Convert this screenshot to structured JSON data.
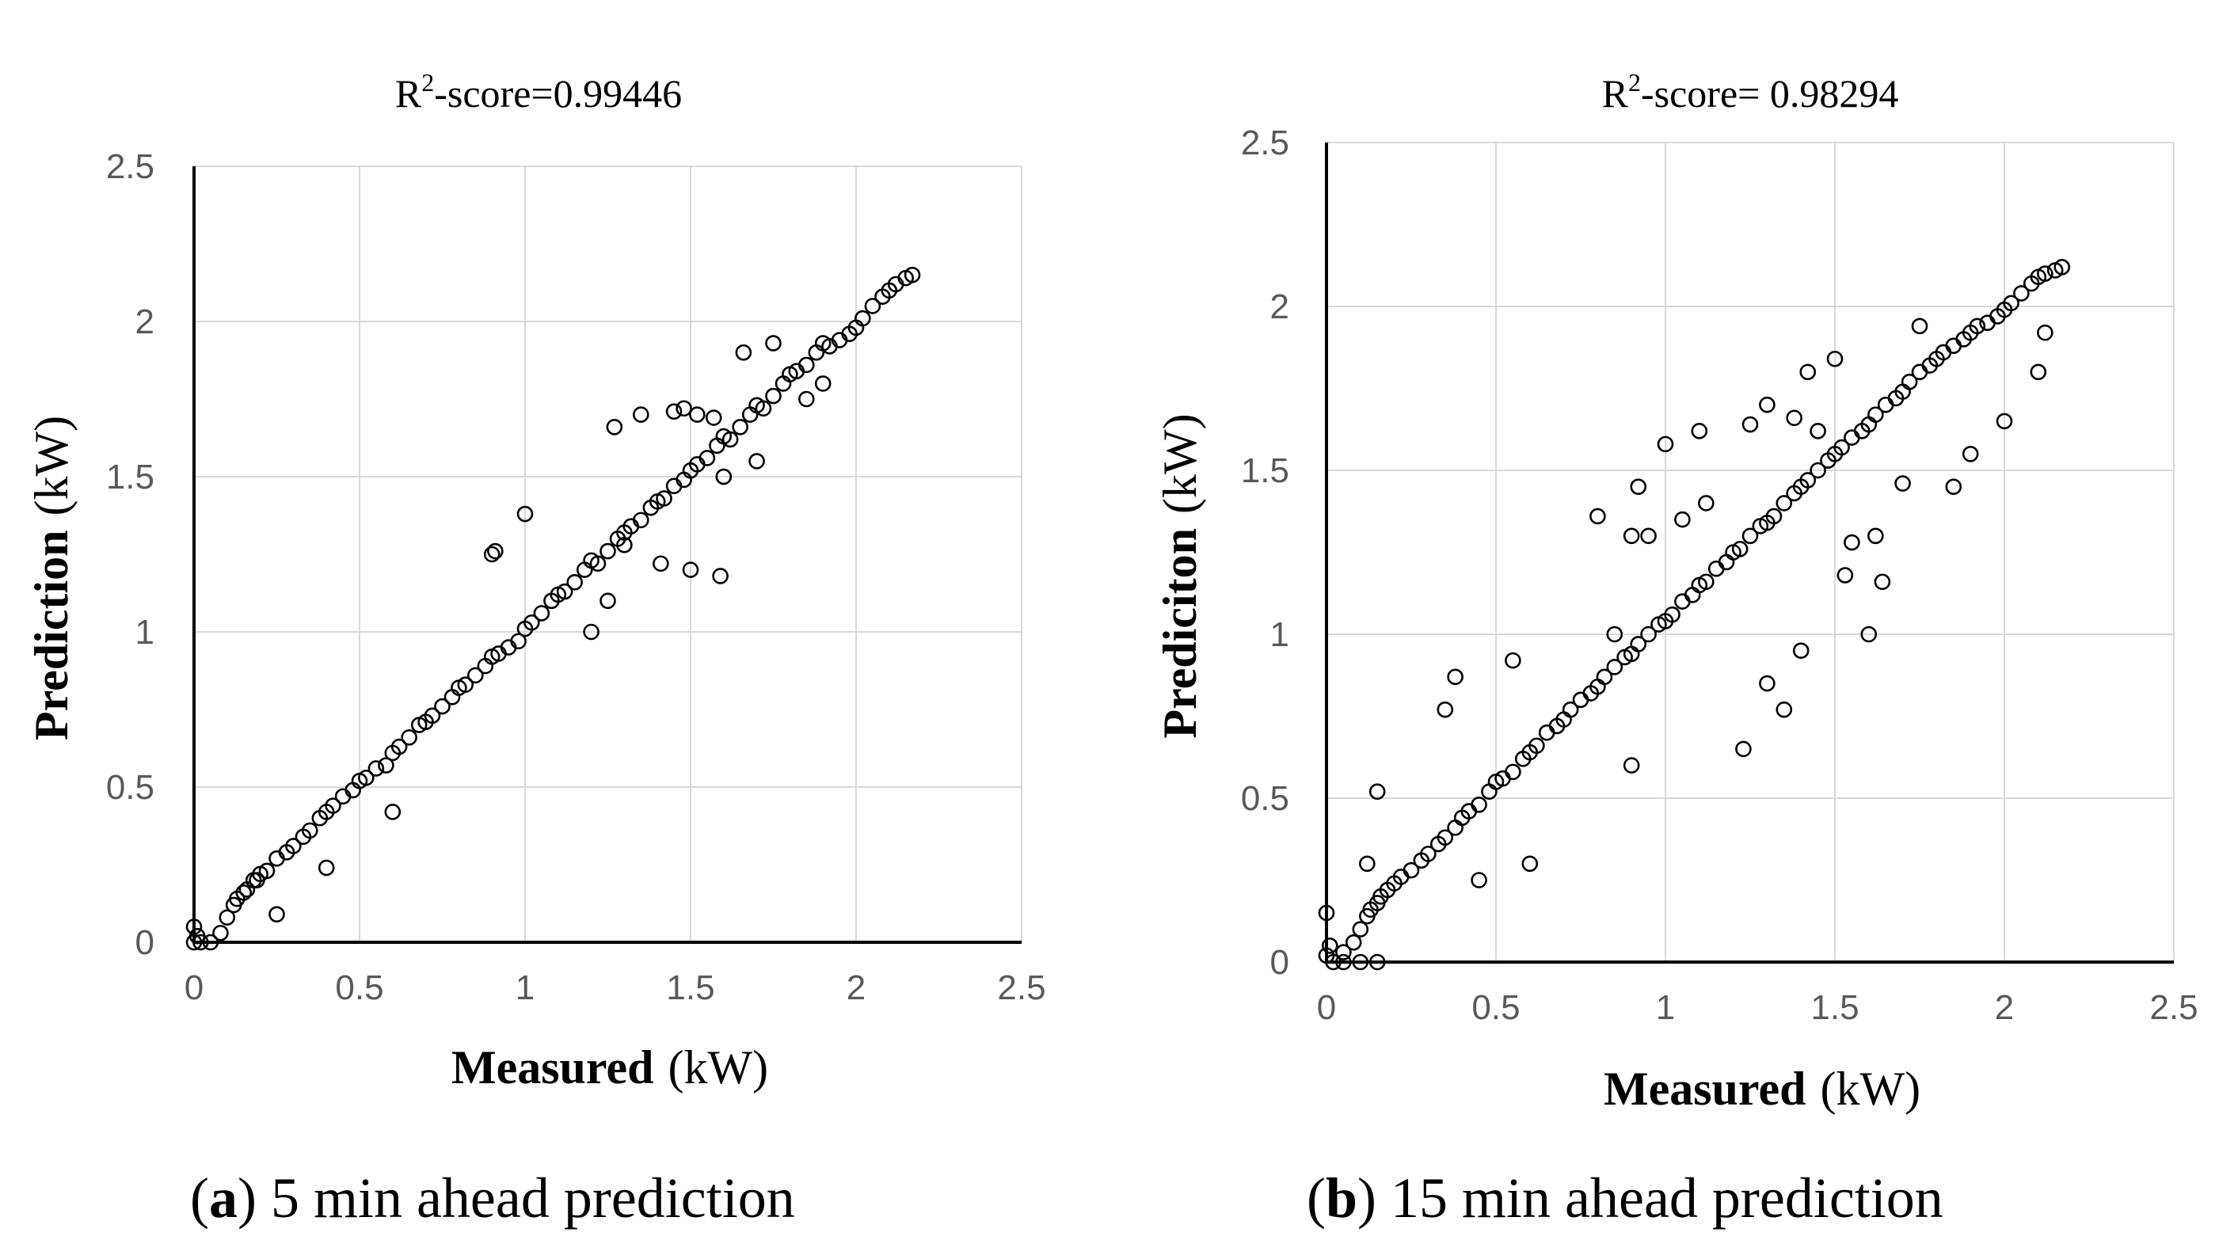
{
  "figure": {
    "captions": [
      {
        "label": "a",
        "open": "(",
        "close": ")",
        "text": " 5 min ahead prediction"
      },
      {
        "label": "b",
        "open": "(",
        "close": ")",
        "text": " 15 min ahead prediction"
      }
    ]
  },
  "chart_data": [
    {
      "type": "scatter",
      "panel": "a",
      "title_prefix": "R",
      "title_sup": "2",
      "title_suffix": "-score=0.99446",
      "xlabel_bold": "Measured",
      "xlabel_unit": "(kW)",
      "ylabel_bold": "Prediction",
      "ylabel_unit": "(kW)",
      "xlim": [
        0,
        2.5
      ],
      "ylim": [
        0,
        2.5
      ],
      "xticks": [
        "0",
        "0.5",
        "1",
        "1.5",
        "2",
        "2.5"
      ],
      "yticks": [
        "0",
        "0.5",
        "1",
        "1.5",
        "2",
        "2.5"
      ],
      "grid": true,
      "marker": "open-circle",
      "color": "#000000",
      "series": [
        {
          "name": "predictions",
          "x": [
            0.0,
            0.0,
            0.01,
            0.02,
            0.05,
            0.08,
            0.1,
            0.12,
            0.13,
            0.15,
            0.16,
            0.18,
            0.19,
            0.2,
            0.22,
            0.25,
            0.28,
            0.3,
            0.33,
            0.35,
            0.38,
            0.4,
            0.42,
            0.45,
            0.48,
            0.5,
            0.52,
            0.55,
            0.58,
            0.6,
            0.62,
            0.65,
            0.68,
            0.7,
            0.72,
            0.75,
            0.78,
            0.8,
            0.82,
            0.85,
            0.88,
            0.9,
            0.92,
            0.95,
            0.98,
            1.0,
            1.02,
            1.05,
            1.08,
            1.1,
            1.12,
            1.15,
            1.18,
            1.2,
            1.22,
            1.25,
            1.28,
            1.3,
            1.32,
            1.35,
            1.38,
            1.4,
            1.42,
            1.45,
            1.48,
            1.5,
            1.52,
            1.55,
            1.58,
            1.6,
            1.62,
            1.65,
            1.68,
            1.7,
            1.72,
            1.75,
            1.78,
            1.8,
            1.82,
            1.85,
            1.88,
            1.9,
            1.92,
            1.95,
            1.98,
            2.0,
            2.02,
            2.05,
            2.08,
            2.1,
            2.12,
            2.15,
            2.17,
            0.9,
            0.91,
            1.0,
            1.27,
            1.35,
            1.45,
            1.48,
            1.52,
            1.57,
            1.59,
            1.66,
            1.75,
            1.5,
            1.6,
            1.41,
            1.2,
            1.25,
            0.6,
            0.4,
            0.25,
            1.3,
            1.6,
            1.7,
            1.85,
            1.9
          ],
          "y": [
            0.05,
            0.0,
            0.02,
            0.0,
            0.0,
            0.03,
            0.08,
            0.12,
            0.14,
            0.16,
            0.17,
            0.2,
            0.2,
            0.22,
            0.23,
            0.27,
            0.29,
            0.31,
            0.34,
            0.36,
            0.4,
            0.42,
            0.44,
            0.47,
            0.49,
            0.52,
            0.53,
            0.56,
            0.57,
            0.61,
            0.63,
            0.66,
            0.7,
            0.71,
            0.73,
            0.76,
            0.79,
            0.82,
            0.83,
            0.86,
            0.89,
            0.92,
            0.93,
            0.95,
            0.97,
            1.01,
            1.03,
            1.06,
            1.1,
            1.12,
            1.13,
            1.16,
            1.2,
            1.23,
            1.22,
            1.26,
            1.3,
            1.32,
            1.34,
            1.36,
            1.4,
            1.42,
            1.43,
            1.47,
            1.49,
            1.52,
            1.54,
            1.56,
            1.6,
            1.63,
            1.62,
            1.66,
            1.7,
            1.73,
            1.72,
            1.76,
            1.8,
            1.83,
            1.84,
            1.86,
            1.9,
            1.93,
            1.92,
            1.94,
            1.96,
            1.98,
            2.01,
            2.05,
            2.08,
            2.1,
            2.12,
            2.14,
            2.15,
            1.25,
            1.26,
            1.38,
            1.66,
            1.7,
            1.71,
            1.72,
            1.7,
            1.69,
            1.18,
            1.9,
            1.93,
            1.2,
            1.5,
            1.22,
            1.0,
            1.1,
            0.42,
            0.24,
            0.09,
            1.28,
            1.5,
            1.55,
            1.75,
            1.8
          ]
        }
      ]
    },
    {
      "type": "scatter",
      "panel": "b",
      "title_prefix": "R",
      "title_sup": "2",
      "title_suffix": "-score= 0.98294",
      "xlabel_bold": "Measured",
      "xlabel_unit": "(kW)",
      "ylabel_bold": "Prediciton",
      "ylabel_unit": "(kW)",
      "xlim": [
        0,
        2.5
      ],
      "ylim": [
        0,
        2.5
      ],
      "xticks": [
        "0",
        "0.5",
        "1",
        "1.5",
        "2",
        "2.5"
      ],
      "yticks": [
        "0",
        "0.5",
        "1",
        "1.5",
        "2",
        "2.5"
      ],
      "grid": true,
      "marker": "open-circle",
      "color": "#000000",
      "series": [
        {
          "name": "predictions",
          "x": [
            0.0,
            0.0,
            0.01,
            0.02,
            0.05,
            0.08,
            0.1,
            0.12,
            0.13,
            0.15,
            0.16,
            0.18,
            0.2,
            0.22,
            0.25,
            0.28,
            0.3,
            0.33,
            0.35,
            0.38,
            0.4,
            0.42,
            0.45,
            0.48,
            0.5,
            0.52,
            0.55,
            0.58,
            0.6,
            0.62,
            0.65,
            0.68,
            0.7,
            0.72,
            0.75,
            0.78,
            0.8,
            0.82,
            0.85,
            0.88,
            0.9,
            0.92,
            0.95,
            0.98,
            1.0,
            1.02,
            1.05,
            1.08,
            1.1,
            1.12,
            1.15,
            1.18,
            1.2,
            1.22,
            1.25,
            1.28,
            1.3,
            1.32,
            1.35,
            1.38,
            1.4,
            1.42,
            1.45,
            1.48,
            1.5,
            1.52,
            1.55,
            1.58,
            1.6,
            1.62,
            1.65,
            1.68,
            1.7,
            1.72,
            1.75,
            1.78,
            1.8,
            1.82,
            1.85,
            1.88,
            1.9,
            1.92,
            1.95,
            1.98,
            2.0,
            2.02,
            2.05,
            2.08,
            2.1,
            2.12,
            2.15,
            2.17,
            0.15,
            0.35,
            0.38,
            0.55,
            0.8,
            0.85,
            0.9,
            0.92,
            0.95,
            1.0,
            1.05,
            1.1,
            1.12,
            1.25,
            1.3,
            1.38,
            1.42,
            1.45,
            1.5,
            1.53,
            1.6,
            1.62,
            1.64,
            1.7,
            1.75,
            1.55,
            1.4,
            1.35,
            1.23,
            1.3,
            0.9,
            0.6,
            0.45,
            0.1,
            0.15,
            2.0,
            2.1,
            2.12,
            1.85,
            1.9,
            0.12,
            0.05
          ],
          "y": [
            0.15,
            0.02,
            0.05,
            0.0,
            0.03,
            0.06,
            0.1,
            0.14,
            0.16,
            0.18,
            0.2,
            0.22,
            0.24,
            0.26,
            0.28,
            0.31,
            0.33,
            0.36,
            0.38,
            0.41,
            0.44,
            0.46,
            0.48,
            0.52,
            0.55,
            0.56,
            0.58,
            0.62,
            0.64,
            0.66,
            0.7,
            0.72,
            0.74,
            0.77,
            0.8,
            0.82,
            0.84,
            0.87,
            0.9,
            0.93,
            0.94,
            0.97,
            1.0,
            1.03,
            1.04,
            1.06,
            1.1,
            1.12,
            1.15,
            1.16,
            1.2,
            1.22,
            1.25,
            1.26,
            1.3,
            1.33,
            1.34,
            1.36,
            1.4,
            1.43,
            1.45,
            1.47,
            1.5,
            1.53,
            1.55,
            1.57,
            1.6,
            1.62,
            1.64,
            1.67,
            1.7,
            1.72,
            1.74,
            1.77,
            1.8,
            1.82,
            1.84,
            1.86,
            1.88,
            1.9,
            1.92,
            1.94,
            1.95,
            1.97,
            1.99,
            2.01,
            2.04,
            2.07,
            2.09,
            2.1,
            2.11,
            2.12,
            0.52,
            0.77,
            0.87,
            0.92,
            1.36,
            1.0,
            1.3,
            1.45,
            1.3,
            1.58,
            1.35,
            1.62,
            1.4,
            1.64,
            1.7,
            1.66,
            1.8,
            1.62,
            1.84,
            1.18,
            1.0,
            1.3,
            1.16,
            1.46,
            1.94,
            1.28,
            0.95,
            0.77,
            0.65,
            0.85,
            0.6,
            0.3,
            0.25,
            0.0,
            0.0,
            1.65,
            1.8,
            1.92,
            1.45,
            1.55,
            0.3,
            0.0
          ]
        }
      ]
    }
  ]
}
